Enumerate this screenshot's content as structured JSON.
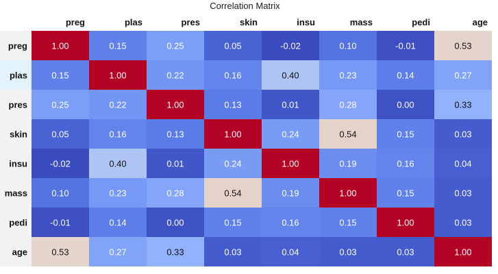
{
  "chart_data": {
    "type": "heatmap",
    "title": "Correlation Matrix",
    "columns": [
      "preg",
      "plas",
      "pres",
      "skin",
      "insu",
      "mass",
      "pedi",
      "age"
    ],
    "rows": [
      "preg",
      "plas",
      "pres",
      "skin",
      "insu",
      "mass",
      "pedi",
      "age"
    ],
    "values": [
      [
        1.0,
        0.15,
        0.25,
        0.05,
        -0.02,
        0.1,
        -0.01,
        0.53
      ],
      [
        0.15,
        1.0,
        0.22,
        0.16,
        0.4,
        0.23,
        0.14,
        0.27
      ],
      [
        0.25,
        0.22,
        1.0,
        0.13,
        0.01,
        0.28,
        0.0,
        0.33
      ],
      [
        0.05,
        0.16,
        0.13,
        1.0,
        0.24,
        0.54,
        0.15,
        0.03
      ],
      [
        -0.02,
        0.4,
        0.01,
        0.24,
        1.0,
        0.19,
        0.16,
        0.04
      ],
      [
        0.1,
        0.23,
        0.28,
        0.54,
        0.19,
        1.0,
        0.15,
        0.03
      ],
      [
        -0.01,
        0.14,
        0.0,
        0.15,
        0.16,
        0.15,
        1.0,
        0.03
      ],
      [
        0.53,
        0.27,
        0.33,
        0.03,
        0.04,
        0.03,
        0.03,
        1.0
      ]
    ],
    "colormap": "coolwarm",
    "value_format": "2 decimals",
    "highlighted_row_label": "plas",
    "colors": {
      "row_header_bg": "#f2f2f2",
      "row_header_highlight_bg": "#e2f3fb",
      "text_dark": "#111111",
      "text_light": "#ffffff"
    }
  }
}
